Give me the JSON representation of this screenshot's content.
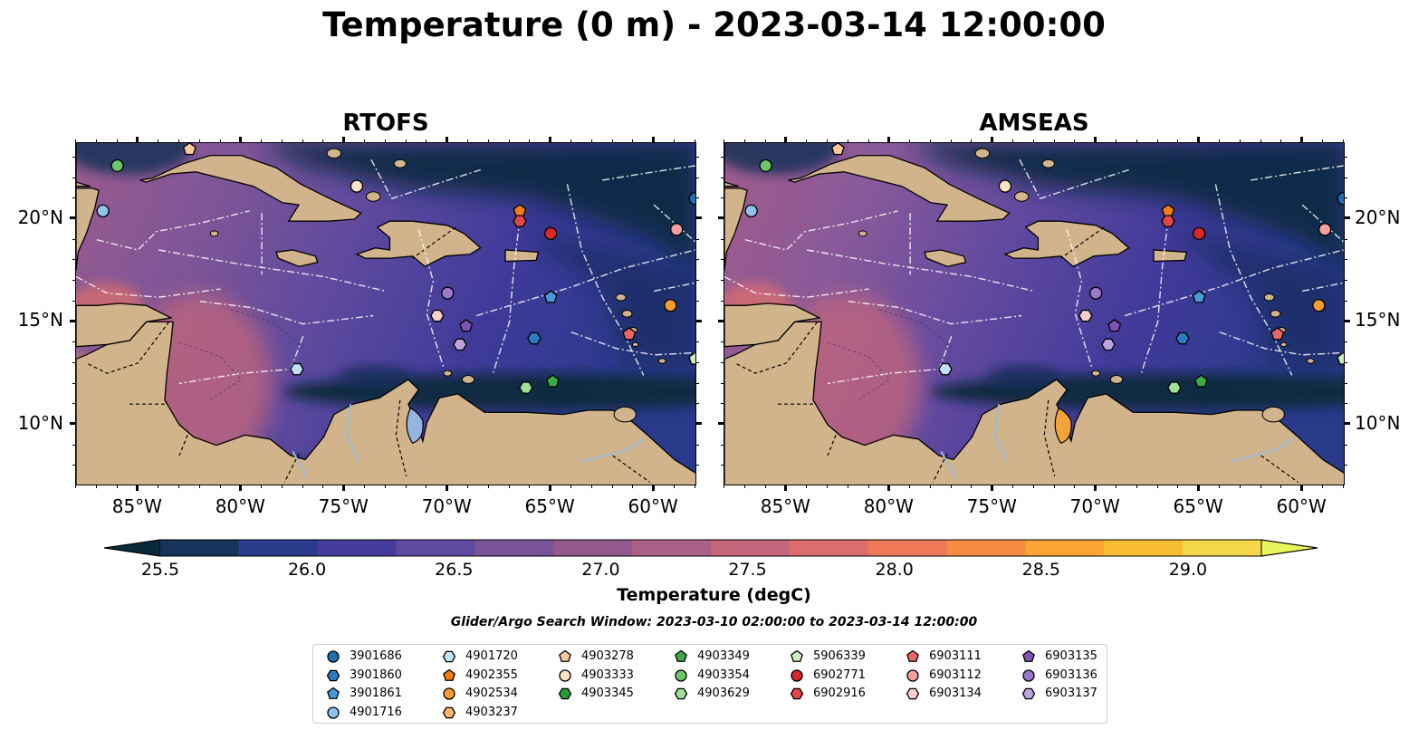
{
  "title": "Temperature (0 m) - 2023-03-14 12:00:00",
  "panels": [
    {
      "title": "RTOFS"
    },
    {
      "title": "AMSEAS"
    }
  ],
  "axes": {
    "x_ticks": [
      "85°W",
      "80°W",
      "75°W",
      "70°W",
      "65°W",
      "60°W"
    ],
    "y_ticks": [
      "20°N",
      "15°N",
      "10°N"
    ],
    "lon_range": [
      -88.0,
      -57.9
    ],
    "lat_range": [
      7.0,
      23.7
    ]
  },
  "colorbar": {
    "label": "Temperature (degC)",
    "ticks": [
      "25.5",
      "26.0",
      "26.5",
      "27.0",
      "27.5",
      "28.0",
      "28.5",
      "29.0"
    ],
    "range": [
      25.5,
      29.25
    ],
    "colors": [
      "#082a3b",
      "#16335c",
      "#2a3c8c",
      "#453c9e",
      "#5f4b9f",
      "#7a5498",
      "#93598f",
      "#ab5f86",
      "#c4667a",
      "#db6d6c",
      "#ee7858",
      "#f88c44",
      "#fba436",
      "#f8bd35",
      "#f3d84a",
      "#e8f45c"
    ]
  },
  "search_window": "Glider/Argo Search Window: 2023-03-10 02:00:00 to 2023-03-14 12:00:00",
  "legend": {
    "columns": [
      [
        {
          "label": "3901686",
          "marker": "circle",
          "color": "#1f6fb4"
        },
        {
          "label": "3901860",
          "marker": "hexagon",
          "color": "#2e7cc0"
        },
        {
          "label": "3901861",
          "marker": "pentagon",
          "color": "#4a98d8"
        },
        {
          "label": "4901716",
          "marker": "circle",
          "color": "#8fc3ec"
        }
      ],
      [
        {
          "label": "4901720",
          "marker": "hexagon",
          "color": "#bfe0f7"
        },
        {
          "label": "4902355",
          "marker": "pentagon",
          "color": "#f07e16"
        },
        {
          "label": "4902534",
          "marker": "circle",
          "color": "#f69a32"
        },
        {
          "label": "4903237",
          "marker": "hexagon",
          "color": "#fbb56b"
        }
      ],
      [
        {
          "label": "4903278",
          "marker": "pentagon",
          "color": "#fbc99b"
        },
        {
          "label": "4903333",
          "marker": "circle",
          "color": "#fde3c6"
        },
        {
          "label": "4903345",
          "marker": "hexagon",
          "color": "#259b3a"
        }
      ],
      [
        {
          "label": "4903349",
          "marker": "pentagon",
          "color": "#3eaa45"
        },
        {
          "label": "4903354",
          "marker": "circle",
          "color": "#6cc66a"
        },
        {
          "label": "4903629",
          "marker": "hexagon",
          "color": "#9ee096"
        }
      ],
      [
        {
          "label": "5906339",
          "marker": "pentagon",
          "color": "#c8f0be"
        },
        {
          "label": "6902771",
          "marker": "circle",
          "color": "#d8282a"
        },
        {
          "label": "6902916",
          "marker": "hexagon",
          "color": "#e0464a"
        }
      ],
      [
        {
          "label": "6903111",
          "marker": "pentagon",
          "color": "#e8686a"
        },
        {
          "label": "6903112",
          "marker": "circle",
          "color": "#f2a0a0"
        },
        {
          "label": "6903134",
          "marker": "hexagon",
          "color": "#f8cdcd"
        }
      ],
      [
        {
          "label": "6903135",
          "marker": "pentagon",
          "color": "#7d54b6"
        },
        {
          "label": "6903136",
          "marker": "circle",
          "color": "#9b78cc"
        },
        {
          "label": "6903137",
          "marker": "hexagon",
          "color": "#bea4dc"
        }
      ]
    ]
  },
  "floats": [
    {
      "label": "4903278",
      "lon": -82.5,
      "lat": 23.4
    },
    {
      "label": "4903354",
      "lon": -86.0,
      "lat": 22.6
    },
    {
      "label": "4901716",
      "lon": -86.7,
      "lat": 20.4
    },
    {
      "label": "4903333",
      "lon": -74.4,
      "lat": 21.6
    },
    {
      "label": "4902355",
      "lon": -66.5,
      "lat": 20.4
    },
    {
      "label": "6902916",
      "lon": -66.5,
      "lat": 19.9
    },
    {
      "label": "6902771",
      "lon": -65.0,
      "lat": 19.3
    },
    {
      "label": "3901686",
      "lon": -58.0,
      "lat": 21.0
    },
    {
      "label": "6903112",
      "lon": -58.9,
      "lat": 19.5
    },
    {
      "label": "6903136",
      "lon": -70.0,
      "lat": 16.4
    },
    {
      "label": "3901861",
      "lon": -65.0,
      "lat": 16.2
    },
    {
      "label": "6903134",
      "lon": -70.5,
      "lat": 15.3
    },
    {
      "label": "6903135",
      "lon": -69.1,
      "lat": 14.8
    },
    {
      "label": "6903137",
      "lon": -69.4,
      "lat": 13.9
    },
    {
      "label": "3901860",
      "lon": -65.8,
      "lat": 14.2
    },
    {
      "label": "6903111",
      "lon": -61.2,
      "lat": 14.4
    },
    {
      "label": "4902534",
      "lon": -59.2,
      "lat": 15.8
    },
    {
      "label": "4901720",
      "lon": -77.3,
      "lat": 12.7
    },
    {
      "label": "4903629",
      "lon": -66.2,
      "lat": 11.8
    },
    {
      "label": "4903349",
      "lon": -64.9,
      "lat": 12.1
    },
    {
      "label": "5906339",
      "lon": -58.0,
      "lat": 13.2
    }
  ]
}
